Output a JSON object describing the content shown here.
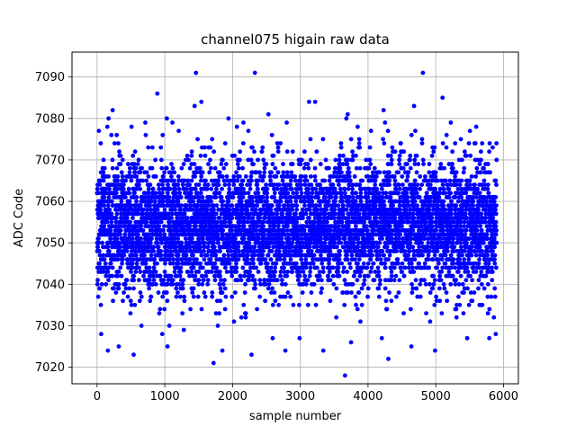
{
  "chart_data": {
    "type": "scatter",
    "title": "channel075 higain raw data",
    "xlabel": "sample number",
    "ylabel": "ADC Code",
    "xlim": [
      -370,
      6220
    ],
    "ylim": [
      7016,
      7096
    ],
    "xticks": [
      0,
      1000,
      2000,
      3000,
      4000,
      5000,
      6000
    ],
    "yticks": [
      7020,
      7030,
      7040,
      7050,
      7060,
      7070,
      7080,
      7090
    ],
    "grid": true,
    "marker_color": "#0000ff",
    "series": [
      {
        "n_points": 5900,
        "x_range": [
          0,
          5899
        ],
        "typical_range": [
          7036,
          7070
        ],
        "center": 7054,
        "outliers": [
          {
            "x": 1460,
            "y": 7091
          },
          {
            "x": 2330,
            "y": 7091
          },
          {
            "x": 4810,
            "y": 7091
          },
          {
            "x": 890,
            "y": 7086
          },
          {
            "x": 5100,
            "y": 7085
          },
          {
            "x": 3130,
            "y": 7084
          },
          {
            "x": 3220,
            "y": 7084
          },
          {
            "x": 1540,
            "y": 7084
          },
          {
            "x": 1440,
            "y": 7083
          },
          {
            "x": 4680,
            "y": 7083
          },
          {
            "x": 230,
            "y": 7082
          },
          {
            "x": 4230,
            "y": 7082
          },
          {
            "x": 2530,
            "y": 7081
          },
          {
            "x": 3700,
            "y": 7081
          },
          {
            "x": 3680,
            "y": 7080
          },
          {
            "x": 1030,
            "y": 7080
          },
          {
            "x": 170,
            "y": 7080
          },
          {
            "x": 1940,
            "y": 7080
          },
          {
            "x": 1720,
            "y": 7021
          },
          {
            "x": 3660,
            "y": 7018
          },
          {
            "x": 4300,
            "y": 7022
          },
          {
            "x": 2280,
            "y": 7023
          },
          {
            "x": 160,
            "y": 7024
          },
          {
            "x": 1850,
            "y": 7024
          },
          {
            "x": 2780,
            "y": 7024
          },
          {
            "x": 3340,
            "y": 7024
          },
          {
            "x": 4990,
            "y": 7024
          },
          {
            "x": 1040,
            "y": 7025
          },
          {
            "x": 320,
            "y": 7025
          },
          {
            "x": 540,
            "y": 7023
          },
          {
            "x": 3750,
            "y": 7026
          },
          {
            "x": 4640,
            "y": 7025
          },
          {
            "x": 5790,
            "y": 7027
          }
        ]
      }
    ]
  }
}
